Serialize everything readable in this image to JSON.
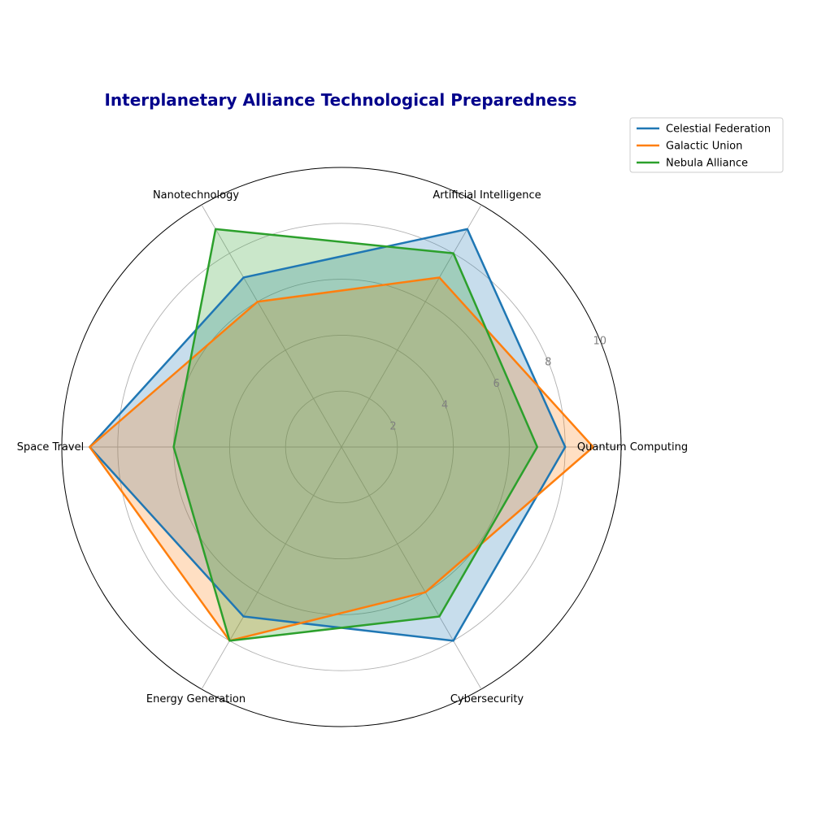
{
  "chart_data": {
    "type": "radar",
    "title": "Interplanetary Alliance Technological Preparedness",
    "title_color": "#00008b",
    "categories": [
      "Quantum Computing",
      "Artificial Intelligence",
      "Nanotechnology",
      "Space Travel",
      "Energy Generation",
      "Cybersecurity"
    ],
    "rlim": [
      0,
      10
    ],
    "rticks": [
      2,
      4,
      6,
      8,
      10
    ],
    "rtick_labels": [
      "2",
      "4",
      "6",
      "8",
      "10"
    ],
    "grid": true,
    "legend_position": "top-right",
    "series": [
      {
        "name": "Celestial Federation",
        "color": "#1f77b4",
        "values": [
          8,
          9,
          7,
          9,
          7,
          8
        ]
      },
      {
        "name": "Galactic Union",
        "color": "#ff7f0e",
        "values": [
          9,
          7,
          6,
          9,
          8,
          6
        ]
      },
      {
        "name": "Nebula Alliance",
        "color": "#2ca02c",
        "values": [
          7,
          8,
          9,
          6,
          8,
          7
        ]
      }
    ]
  }
}
